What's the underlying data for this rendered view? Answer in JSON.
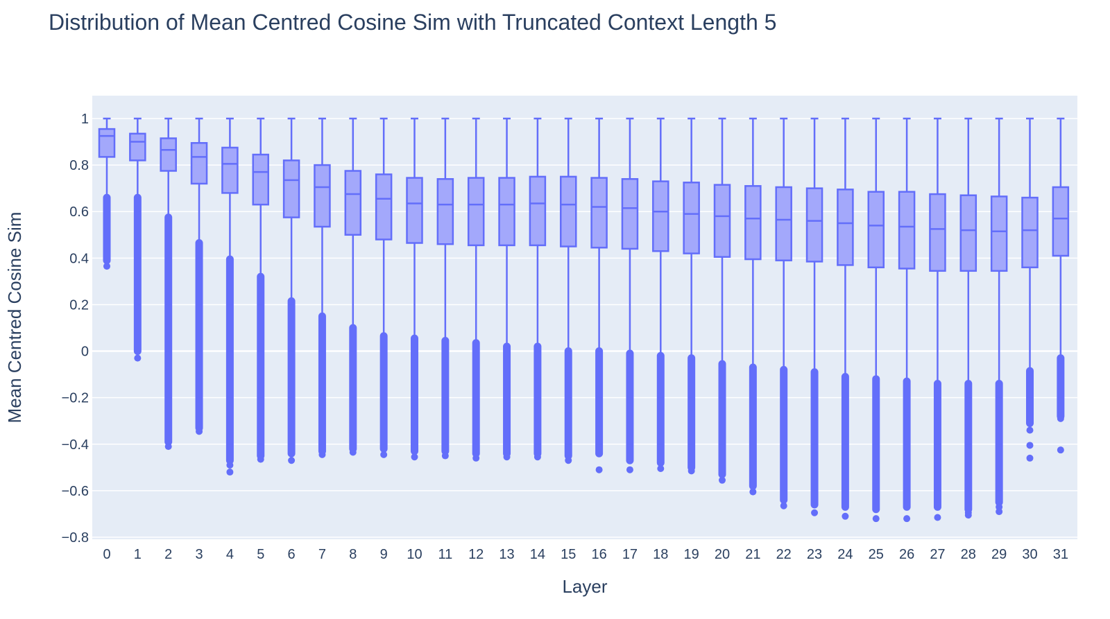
{
  "chart_data": {
    "type": "box",
    "title": "Distribution of Mean Centred Cosine Sim with Truncated Context Length 5",
    "xlabel": "Layer",
    "ylabel": "Mean Centred Cosine Sim",
    "ylim": [
      -0.82,
      1.1
    ],
    "yticks": [
      1,
      0.8,
      0.6,
      0.4,
      0.2,
      0,
      -0.2,
      -0.4,
      -0.6,
      -0.8
    ],
    "ytick_labels": [
      "1",
      "0.8",
      "0.6",
      "0.4",
      "0.2",
      "0",
      "−0.2",
      "−0.4",
      "−0.6",
      "−0.8"
    ],
    "grid": true,
    "colors": {
      "line": "#636efa",
      "fill": "#a3a8fb",
      "plot_bg": "#e5ecf6",
      "grid": "#ffffff",
      "text": "#2a3f5f"
    },
    "categories": [
      "0",
      "1",
      "2",
      "3",
      "4",
      "5",
      "6",
      "7",
      "8",
      "9",
      "10",
      "11",
      "12",
      "13",
      "14",
      "15",
      "16",
      "17",
      "18",
      "19",
      "20",
      "21",
      "22",
      "23",
      "24",
      "25",
      "26",
      "27",
      "28",
      "29",
      "30",
      "31"
    ],
    "boxes": [
      {
        "whisker_high": 1.0,
        "q3": 0.955,
        "median": 0.925,
        "q1": 0.835,
        "whisker_low": 0.665,
        "outlier_band_top": 0.66,
        "outlier_band_bottom": 0.39,
        "extreme_outliers": [
          0.365
        ]
      },
      {
        "whisker_high": 1.0,
        "q3": 0.935,
        "median": 0.9,
        "q1": 0.82,
        "whisker_low": 0.665,
        "outlier_band_top": 0.66,
        "outlier_band_bottom": 0.0,
        "extreme_outliers": [
          -0.03
        ]
      },
      {
        "whisker_high": 1.0,
        "q3": 0.915,
        "median": 0.865,
        "q1": 0.775,
        "whisker_low": 0.58,
        "outlier_band_top": 0.575,
        "outlier_band_bottom": -0.39,
        "extreme_outliers": [
          -0.41
        ]
      },
      {
        "whisker_high": 1.0,
        "q3": 0.895,
        "median": 0.835,
        "q1": 0.72,
        "whisker_low": 0.47,
        "outlier_band_top": 0.465,
        "outlier_band_bottom": -0.33,
        "extreme_outliers": [
          -0.345
        ]
      },
      {
        "whisker_high": 1.0,
        "q3": 0.875,
        "median": 0.805,
        "q1": 0.68,
        "whisker_low": 0.4,
        "outlier_band_top": 0.395,
        "outlier_band_bottom": -0.47,
        "extreme_outliers": [
          -0.49,
          -0.52
        ]
      },
      {
        "whisker_high": 1.0,
        "q3": 0.845,
        "median": 0.77,
        "q1": 0.63,
        "whisker_low": 0.33,
        "outlier_band_top": 0.32,
        "outlier_band_bottom": -0.45,
        "extreme_outliers": [
          -0.465
        ]
      },
      {
        "whisker_high": 1.0,
        "q3": 0.82,
        "median": 0.735,
        "q1": 0.575,
        "whisker_low": 0.22,
        "outlier_band_top": 0.215,
        "outlier_band_bottom": -0.44,
        "extreme_outliers": [
          -0.47
        ]
      },
      {
        "whisker_high": 1.0,
        "q3": 0.8,
        "median": 0.705,
        "q1": 0.535,
        "whisker_low": 0.16,
        "outlier_band_top": 0.15,
        "outlier_band_bottom": -0.43,
        "extreme_outliers": [
          -0.445
        ]
      },
      {
        "whisker_high": 1.0,
        "q3": 0.775,
        "median": 0.675,
        "q1": 0.5,
        "whisker_low": 0.11,
        "outlier_band_top": 0.1,
        "outlier_band_bottom": -0.42,
        "extreme_outliers": [
          -0.435
        ]
      },
      {
        "whisker_high": 1.0,
        "q3": 0.76,
        "median": 0.655,
        "q1": 0.48,
        "whisker_low": 0.075,
        "outlier_band_top": 0.065,
        "outlier_band_bottom": -0.42,
        "extreme_outliers": [
          -0.445
        ]
      },
      {
        "whisker_high": 1.0,
        "q3": 0.745,
        "median": 0.635,
        "q1": 0.465,
        "whisker_low": 0.06,
        "outlier_band_top": 0.055,
        "outlier_band_bottom": -0.43,
        "extreme_outliers": [
          -0.455
        ]
      },
      {
        "whisker_high": 1.0,
        "q3": 0.74,
        "median": 0.63,
        "q1": 0.46,
        "whisker_low": 0.05,
        "outlier_band_top": 0.045,
        "outlier_band_bottom": -0.43,
        "extreme_outliers": [
          -0.45
        ]
      },
      {
        "whisker_high": 1.0,
        "q3": 0.745,
        "median": 0.63,
        "q1": 0.455,
        "whisker_low": 0.04,
        "outlier_band_top": 0.035,
        "outlier_band_bottom": -0.44,
        "extreme_outliers": [
          -0.46
        ]
      },
      {
        "whisker_high": 1.0,
        "q3": 0.745,
        "median": 0.63,
        "q1": 0.455,
        "whisker_low": 0.03,
        "outlier_band_top": 0.02,
        "outlier_band_bottom": -0.44,
        "extreme_outliers": [
          -0.455
        ]
      },
      {
        "whisker_high": 1.0,
        "q3": 0.75,
        "median": 0.635,
        "q1": 0.455,
        "whisker_low": 0.03,
        "outlier_band_top": 0.02,
        "outlier_band_bottom": -0.44,
        "extreme_outliers": [
          -0.455
        ]
      },
      {
        "whisker_high": 1.0,
        "q3": 0.75,
        "median": 0.63,
        "q1": 0.45,
        "whisker_low": 0.01,
        "outlier_band_top": 0.0,
        "outlier_band_bottom": -0.45,
        "extreme_outliers": [
          -0.47
        ]
      },
      {
        "whisker_high": 1.0,
        "q3": 0.745,
        "median": 0.62,
        "q1": 0.445,
        "whisker_low": 0.01,
        "outlier_band_top": 0.0,
        "outlier_band_bottom": -0.44,
        "extreme_outliers": [
          -0.51
        ]
      },
      {
        "whisker_high": 1.0,
        "q3": 0.74,
        "median": 0.615,
        "q1": 0.44,
        "whisker_low": 0.0,
        "outlier_band_top": -0.01,
        "outlier_band_bottom": -0.47,
        "extreme_outliers": [
          -0.51
        ]
      },
      {
        "whisker_high": 1.0,
        "q3": 0.73,
        "median": 0.6,
        "q1": 0.43,
        "whisker_low": -0.01,
        "outlier_band_top": -0.02,
        "outlier_band_bottom": -0.48,
        "extreme_outliers": [
          -0.505
        ]
      },
      {
        "whisker_high": 1.0,
        "q3": 0.725,
        "median": 0.59,
        "q1": 0.42,
        "whisker_low": -0.02,
        "outlier_band_top": -0.03,
        "outlier_band_bottom": -0.5,
        "extreme_outliers": [
          -0.515
        ]
      },
      {
        "whisker_high": 1.0,
        "q3": 0.715,
        "median": 0.58,
        "q1": 0.405,
        "whisker_low": -0.05,
        "outlier_band_top": -0.055,
        "outlier_band_bottom": -0.53,
        "extreme_outliers": [
          -0.555
        ]
      },
      {
        "whisker_high": 1.0,
        "q3": 0.71,
        "median": 0.57,
        "q1": 0.395,
        "whisker_low": -0.065,
        "outlier_band_top": -0.07,
        "outlier_band_bottom": -0.58,
        "extreme_outliers": [
          -0.605
        ]
      },
      {
        "whisker_high": 1.0,
        "q3": 0.705,
        "median": 0.565,
        "q1": 0.39,
        "whisker_low": -0.075,
        "outlier_band_top": -0.08,
        "outlier_band_bottom": -0.64,
        "extreme_outliers": [
          -0.665
        ]
      },
      {
        "whisker_high": 1.0,
        "q3": 0.7,
        "median": 0.56,
        "q1": 0.385,
        "whisker_low": -0.08,
        "outlier_band_top": -0.09,
        "outlier_band_bottom": -0.66,
        "extreme_outliers": [
          -0.695
        ]
      },
      {
        "whisker_high": 1.0,
        "q3": 0.695,
        "median": 0.55,
        "q1": 0.37,
        "whisker_low": -0.105,
        "outlier_band_top": -0.11,
        "outlier_band_bottom": -0.67,
        "extreme_outliers": [
          -0.71
        ]
      },
      {
        "whisker_high": 1.0,
        "q3": 0.685,
        "median": 0.54,
        "q1": 0.36,
        "whisker_low": -0.115,
        "outlier_band_top": -0.12,
        "outlier_band_bottom": -0.68,
        "extreme_outliers": [
          -0.72
        ]
      },
      {
        "whisker_high": 1.0,
        "q3": 0.685,
        "median": 0.535,
        "q1": 0.355,
        "whisker_low": -0.125,
        "outlier_band_top": -0.13,
        "outlier_band_bottom": -0.67,
        "extreme_outliers": [
          -0.72
        ]
      },
      {
        "whisker_high": 1.0,
        "q3": 0.675,
        "median": 0.525,
        "q1": 0.345,
        "whisker_low": -0.135,
        "outlier_band_top": -0.14,
        "outlier_band_bottom": -0.67,
        "extreme_outliers": [
          -0.715
        ]
      },
      {
        "whisker_high": 1.0,
        "q3": 0.67,
        "median": 0.52,
        "q1": 0.345,
        "whisker_low": -0.13,
        "outlier_band_top": -0.14,
        "outlier_band_bottom": -0.68,
        "extreme_outliers": [
          -0.695,
          -0.705
        ]
      },
      {
        "whisker_high": 1.0,
        "q3": 0.665,
        "median": 0.515,
        "q1": 0.345,
        "whisker_low": -0.13,
        "outlier_band_top": -0.14,
        "outlier_band_bottom": -0.65,
        "extreme_outliers": [
          -0.67,
          -0.69
        ]
      },
      {
        "whisker_high": 1.0,
        "q3": 0.66,
        "median": 0.52,
        "q1": 0.36,
        "whisker_low": -0.08,
        "outlier_band_top": -0.085,
        "outlier_band_bottom": -0.31,
        "extreme_outliers": [
          -0.34,
          -0.405,
          -0.46
        ]
      },
      {
        "whisker_high": 1.0,
        "q3": 0.705,
        "median": 0.57,
        "q1": 0.41,
        "whisker_low": -0.025,
        "outlier_band_top": -0.03,
        "outlier_band_bottom": -0.28,
        "extreme_outliers": [
          -0.29,
          -0.425
        ]
      }
    ]
  }
}
